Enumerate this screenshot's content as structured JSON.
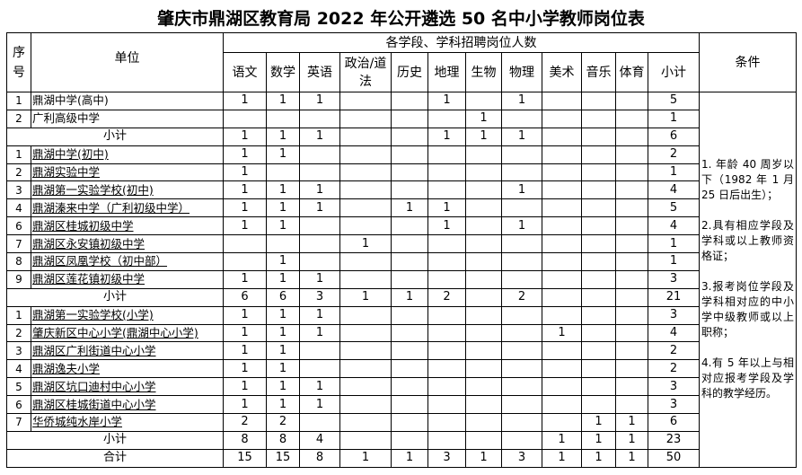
{
  "title": "肇庆市鼎湖区教育局 2022 年公开遴选 50 名中小学教师岗位表",
  "header": {
    "seq": "序号",
    "unit": "单位",
    "group": "各学段、学科招聘岗位人数",
    "subjects": [
      "语文",
      "数学",
      "英语",
      "政治/道法",
      "历史",
      "地理",
      "生物",
      "物理",
      "美术",
      "音乐",
      "体育"
    ],
    "subtotal": "小计",
    "conditions": "条件"
  },
  "rows": [
    {
      "seq": "1",
      "unit": "鼎湖中学(高中)",
      "u": false,
      "vals": [
        "1",
        "1",
        "1",
        "",
        "",
        "1",
        "",
        "1",
        "",
        "",
        ""
      ],
      "total": "5"
    },
    {
      "seq": "2",
      "unit": "广利高级中学",
      "u": false,
      "vals": [
        "",
        "",
        "",
        "",
        "",
        "",
        "1",
        "",
        "",
        "",
        ""
      ],
      "total": "1"
    },
    {
      "label": "小计",
      "vals": [
        "1",
        "1",
        "1",
        "",
        "",
        "1",
        "1",
        "1",
        "",
        "",
        ""
      ],
      "total": "6"
    },
    {
      "seq": "1",
      "unit": "鼎湖中学(初中)",
      "u": true,
      "vals": [
        "1",
        "1",
        "",
        "",
        "",
        "",
        "",
        "",
        "",
        "",
        ""
      ],
      "total": "2"
    },
    {
      "seq": "2",
      "unit": "鼎湖实验中学",
      "u": true,
      "vals": [
        "1",
        "",
        "",
        "",
        "",
        "",
        "",
        "",
        "",
        "",
        ""
      ],
      "total": "1"
    },
    {
      "seq": "3",
      "unit": "鼎湖第一实验学校(初中)",
      "u": true,
      "vals": [
        "1",
        "1",
        "1",
        "",
        "",
        "",
        "",
        "1",
        "",
        "",
        ""
      ],
      "total": "4"
    },
    {
      "seq": "4",
      "unit": "鼎湖溱来中学（广利初级中学）",
      "u": true,
      "vals": [
        "1",
        "1",
        "1",
        "",
        "1",
        "1",
        "",
        "",
        "",
        "",
        ""
      ],
      "total": "5"
    },
    {
      "seq": "6",
      "unit": "鼎湖区桂城初级中学",
      "u": true,
      "vals": [
        "1",
        "1",
        "",
        "",
        "",
        "1",
        "",
        "1",
        "",
        "",
        ""
      ],
      "total": "4"
    },
    {
      "seq": "7",
      "unit": "鼎湖区永安镇初级中学",
      "u": true,
      "vals": [
        "",
        "",
        "",
        "1",
        "",
        "",
        "",
        "",
        "",
        "",
        ""
      ],
      "total": "1"
    },
    {
      "seq": "8",
      "unit": "鼎湖区凤凰学校（初中部）",
      "u": true,
      "vals": [
        "",
        "1",
        "",
        "",
        "",
        "",
        "",
        "",
        "",
        "",
        ""
      ],
      "total": "1"
    },
    {
      "seq": "9",
      "unit": "鼎湖区莲花镇初级中学",
      "u": true,
      "vals": [
        "1",
        "1",
        "1",
        "",
        "",
        "",
        "",
        "",
        "",
        "",
        ""
      ],
      "total": "3"
    },
    {
      "label": "小计",
      "vals": [
        "6",
        "6",
        "3",
        "1",
        "1",
        "2",
        "",
        "2",
        "",
        "",
        ""
      ],
      "total": "21"
    },
    {
      "seq": "1",
      "unit": "鼎湖第一实验学校(小学)",
      "u": true,
      "vals": [
        "1",
        "1",
        "1",
        "",
        "",
        "",
        "",
        "",
        "",
        "",
        ""
      ],
      "total": "3"
    },
    {
      "seq": "2",
      "unit": "肇庆新区中心小学(鼎湖中心小学)",
      "u": true,
      "vals": [
        "1",
        "1",
        "1",
        "",
        "",
        "",
        "",
        "",
        "1",
        "",
        ""
      ],
      "total": "4"
    },
    {
      "seq": "3",
      "unit": "鼎湖区广利街道中心小学",
      "u": true,
      "vals": [
        "1",
        "1",
        "",
        "",
        "",
        "",
        "",
        "",
        "",
        "",
        ""
      ],
      "total": "2"
    },
    {
      "seq": "4",
      "unit": "鼎湖逸夫小学",
      "u": true,
      "vals": [
        "1",
        "1",
        "",
        "",
        "",
        "",
        "",
        "",
        "",
        "",
        ""
      ],
      "total": "2"
    },
    {
      "seq": "5",
      "unit": "鼎湖区坑口迪村中心小学",
      "u": true,
      "vals": [
        "1",
        "1",
        "1",
        "",
        "",
        "",
        "",
        "",
        "",
        "",
        ""
      ],
      "total": "3"
    },
    {
      "seq": "6",
      "unit": "鼎湖区桂城街道中心小学",
      "u": true,
      "vals": [
        "1",
        "1",
        "1",
        "",
        "",
        "",
        "",
        "",
        "",
        "",
        ""
      ],
      "total": "3"
    },
    {
      "seq": "7",
      "unit": "华侨城纯水岸小学",
      "u": true,
      "vals": [
        "2",
        "2",
        "",
        "",
        "",
        "",
        "",
        "",
        "",
        "1",
        "1"
      ],
      "total": "6"
    },
    {
      "label": "小计",
      "vals": [
        "8",
        "8",
        "4",
        "",
        "",
        "",
        "",
        "",
        "1",
        "1",
        "1"
      ],
      "total": "23"
    },
    {
      "label": "合计",
      "vals": [
        "15",
        "15",
        "8",
        "1",
        "1",
        "3",
        "1",
        "3",
        "1",
        "1",
        "1"
      ],
      "total": "50"
    }
  ],
  "conditions": [
    "1. 年龄 40 周岁以下（1982 年 1 月 25 日后出生）；",
    "2.具有相应学段及学科或以上教师资格证；",
    "3.报考岗位学段及学科相对应的中小学中级教师或以上职称；",
    "4.有 5 年以上与相对应报考学段及学科的教学经历。"
  ]
}
